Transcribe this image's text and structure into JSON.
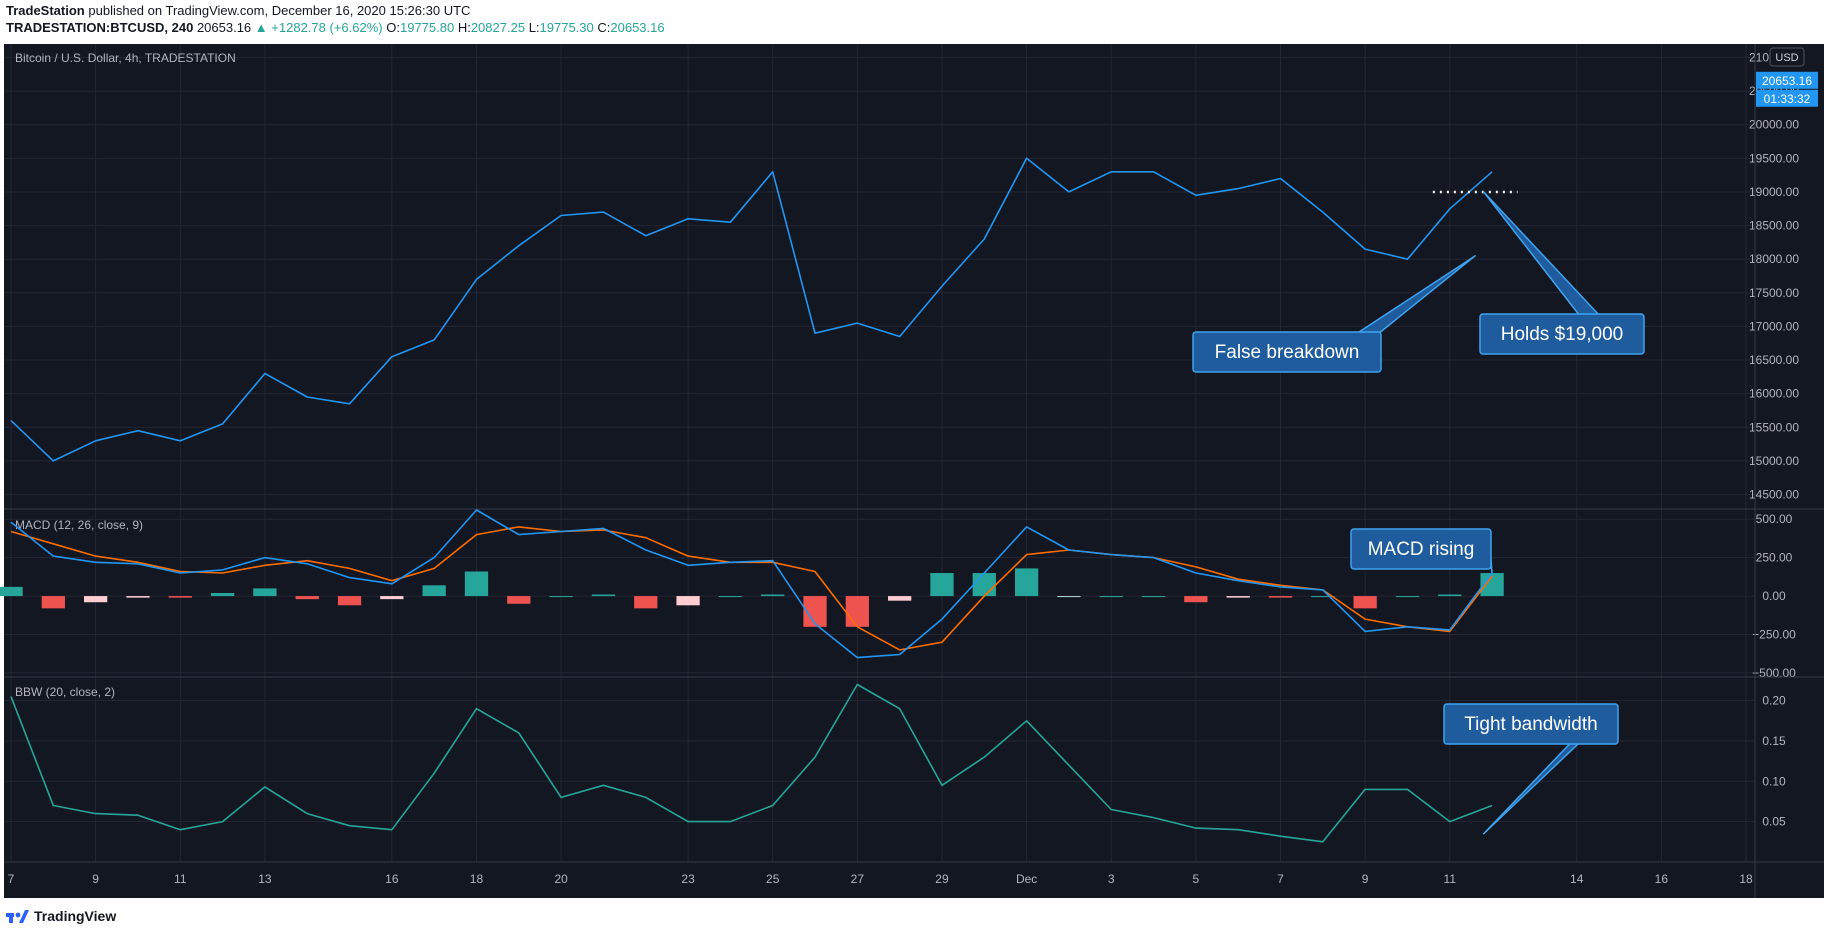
{
  "header": {
    "publisher": "TradeStation",
    "published_text": "published on TradingView.com, December 16, 2020 15:26:30 UTC",
    "symbol": "TRADESTATION:BTCUSD, 240",
    "last": "20653.16",
    "change": "+1282.78 (+6.62%)",
    "o_label": "O:",
    "o_val": "19775.80",
    "h_label": "H:",
    "h_val": "20827.25",
    "l_label": "L:",
    "l_val": "19775.30",
    "c_label": "C:",
    "c_val": "20653.16"
  },
  "footer": {
    "brand": "TradingView"
  },
  "colors": {
    "background": "#131722",
    "grid": "#242732",
    "price_line": "#2196f3",
    "signal_line": "#ff6d00",
    "hist_pos_strong": "#26a69a",
    "hist_pos_weak": "#b2dfdb",
    "hist_neg_strong": "#ef5350",
    "hist_neg_weak": "#ffcdd2",
    "bbw_line": "#26a69a",
    "annotation_fill": "#1e5c9e",
    "annotation_border": "#3fa4f0"
  },
  "chart_data": [
    {
      "type": "line",
      "title": "Bitcoin / U.S. Dollar, 4h, TRADESTATION",
      "currency": "USD",
      "x": [
        7,
        8,
        9,
        10,
        11,
        12,
        13,
        14,
        15,
        16,
        17,
        18,
        19,
        20,
        21,
        22,
        23,
        24,
        25,
        26,
        27,
        28,
        29,
        30,
        31,
        32,
        33,
        34,
        35,
        36,
        37,
        38,
        39,
        40,
        41,
        42
      ],
      "x_tick_labels": [
        "7",
        "9",
        "11",
        "13",
        "16",
        "18",
        "20",
        "23",
        "25",
        "27",
        "29",
        "Dec",
        "3",
        "5",
        "7",
        "9",
        "11",
        "14",
        "16",
        "18"
      ],
      "x_tick_days": [
        7,
        9,
        11,
        13,
        16,
        18,
        20,
        23,
        25,
        27,
        29,
        31,
        33,
        35,
        37,
        39,
        41,
        44,
        46,
        48
      ],
      "series": [
        {
          "values": [
            15600,
            15000,
            15300,
            15450,
            15300,
            15550,
            16300,
            15950,
            15850,
            16550,
            16800,
            17700,
            18200,
            18650,
            18700,
            18350,
            18600,
            18550,
            19300,
            16900,
            17050,
            16850,
            17600,
            18300,
            19500,
            19000,
            19300,
            19300,
            18950,
            19050,
            19200,
            18700,
            18150,
            18000,
            18750,
            19300
          ]
        }
      ],
      "ylim": [
        14300,
        21200
      ],
      "y_ticks": [
        14500,
        15000,
        15500,
        16000,
        16500,
        17000,
        17500,
        18000,
        18500,
        19000,
        19500,
        20000,
        20500,
        21000
      ],
      "y_tick_labels": [
        "14500.00",
        "15000.00",
        "15500.00",
        "16000.00",
        "16500.00",
        "17000.00",
        "17500.00",
        "18000.00",
        "18500.00",
        "19000.00",
        "19500.00",
        "20000.00",
        "20500.00",
        "21000.00"
      ],
      "last_value": 20653.16,
      "last_value_label": "20653.16",
      "countdown_label": "01:33:32",
      "level": 19000,
      "annotations": [
        "False breakdown",
        "Holds $19,000"
      ]
    },
    {
      "type": "line",
      "title": "MACD (12, 26, close, 9)",
      "x": [
        7,
        8,
        9,
        10,
        11,
        12,
        13,
        14,
        15,
        16,
        17,
        18,
        19,
        20,
        21,
        22,
        23,
        24,
        25,
        26,
        27,
        28,
        29,
        30,
        31,
        32,
        33,
        34,
        35,
        36,
        37,
        38,
        39,
        40,
        41,
        42
      ],
      "series": [
        {
          "values": [
            480,
            260,
            220,
            210,
            150,
            170,
            250,
            210,
            120,
            80,
            250,
            560,
            400,
            420,
            440,
            300,
            200,
            220,
            230,
            -180,
            -400,
            -380,
            -150,
            150,
            450,
            300,
            270,
            250,
            150,
            100,
            60,
            40,
            -230,
            -200,
            -220,
            150
          ]
        },
        {
          "values": [
            420,
            340,
            260,
            220,
            160,
            150,
            200,
            230,
            180,
            100,
            180,
            400,
            450,
            420,
            430,
            380,
            260,
            220,
            220,
            160,
            -200,
            -350,
            -300,
            0,
            270,
            300,
            270,
            250,
            190,
            110,
            70,
            40,
            -150,
            -200,
            -230,
            130
          ]
        }
      ],
      "histogram": [
        60,
        -80,
        -40,
        -10,
        -10,
        20,
        50,
        -20,
        -60,
        -20,
        70,
        160,
        -50,
        0,
        10,
        -80,
        -60,
        0,
        10,
        -200,
        -200,
        -30,
        150,
        150,
        180,
        0,
        0,
        0,
        -40,
        -10,
        -10,
        0,
        -80,
        0,
        10,
        150
      ],
      "ylim": [
        -520,
        560
      ],
      "y_ticks": [
        500,
        250,
        0,
        -250,
        -500
      ],
      "y_tick_labels": [
        "500.00",
        "250.00",
        "0.00",
        "−250.00",
        "−500.00"
      ],
      "annotations": [
        "MACD rising"
      ]
    },
    {
      "type": "line",
      "title": "BBW (20, close, 2)",
      "x": [
        7,
        8,
        9,
        10,
        11,
        12,
        13,
        14,
        15,
        16,
        17,
        18,
        19,
        20,
        21,
        22,
        23,
        24,
        25,
        26,
        27,
        28,
        29,
        30,
        31,
        32,
        33,
        34,
        35,
        36,
        37,
        38,
        39,
        40,
        41,
        42
      ],
      "series": [
        {
          "values": [
            0.205,
            0.07,
            0.06,
            0.058,
            0.04,
            0.05,
            0.093,
            0.06,
            0.045,
            0.04,
            0.11,
            0.19,
            0.16,
            0.08,
            0.095,
            0.08,
            0.05,
            0.05,
            0.07,
            0.13,
            0.22,
            0.19,
            0.095,
            0.13,
            0.175,
            0.12,
            0.065,
            0.055,
            0.042,
            0.04,
            0.032,
            0.025,
            0.09,
            0.09,
            0.05,
            0.07
          ]
        }
      ],
      "ylim": [
        0.0,
        0.228
      ],
      "y_ticks": [
        0.2,
        0.15,
        0.1,
        0.05
      ],
      "y_tick_labels": [
        "0.20",
        "0.15",
        "0.10",
        "0.05"
      ],
      "annotations": [
        "Tight bandwidth"
      ]
    }
  ]
}
